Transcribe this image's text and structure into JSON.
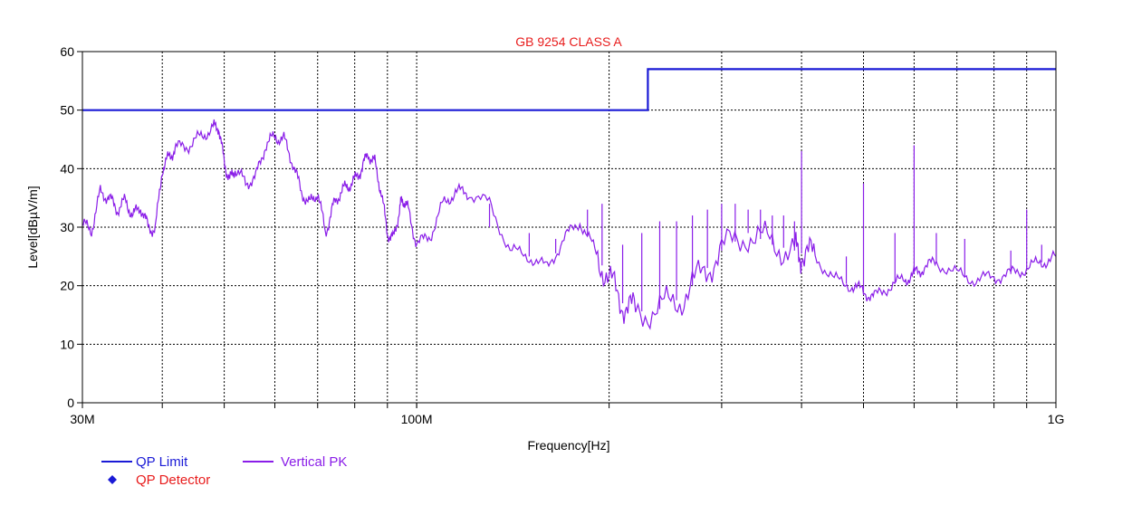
{
  "chart_data": {
    "type": "line",
    "title": "GB 9254 CLASS A",
    "xlabel": "Frequency[Hz]",
    "ylabel": "Level[dBµV/m]",
    "x_scale": "log",
    "xlim": [
      30000000,
      1000000000
    ],
    "ylim": [
      0,
      60
    ],
    "y_ticks": [
      0,
      10,
      20,
      30,
      40,
      50,
      60
    ],
    "x_tick_labels": [
      {
        "value": 30000000,
        "label": "30M"
      },
      {
        "value": 100000000,
        "label": "100M"
      },
      {
        "value": 1000000000,
        "label": "1G"
      }
    ],
    "x_grid": [
      40000000,
      50000000,
      60000000,
      70000000,
      80000000,
      90000000,
      100000000,
      200000000,
      300000000,
      400000000,
      500000000,
      600000000,
      700000000,
      800000000,
      900000000
    ],
    "grid": true,
    "grid_style": "dotted",
    "legend_position": "bottom-left",
    "colors": {
      "limit": "#1a1ad6",
      "peak": "#8a1de8",
      "detector": "#1a1ad6",
      "title": "#e81c1c",
      "detector_label": "#e81c1c"
    },
    "legend": [
      {
        "name": "QP Limit",
        "marker": "line",
        "color": "#1a1ad6",
        "label_color": "#1a1ad6"
      },
      {
        "name": "Vertical PK",
        "marker": "line",
        "color": "#8a1de8",
        "label_color": "#8a1de8"
      },
      {
        "name": "QP Detector",
        "marker": "diamond",
        "color": "#1a1ad6",
        "label_color": "#e81c1c"
      }
    ],
    "series": [
      {
        "name": "QP Limit",
        "color": "#1a1ad6",
        "step": true,
        "x": [
          30000000,
          230000000,
          230000000,
          1000000000
        ],
        "y": [
          50,
          50,
          57,
          57
        ]
      },
      {
        "name": "Vertical PK",
        "color": "#8a1de8",
        "x": [
          30000000,
          31000000,
          32000000,
          33000000,
          34000000,
          35000000,
          36000000,
          37000000,
          38000000,
          39000000,
          40000000,
          41000000,
          42000000,
          44000000,
          46000000,
          48000000,
          49000000,
          50000000,
          51000000,
          52000000,
          54000000,
          56000000,
          58000000,
          60000000,
          62000000,
          64000000,
          66000000,
          68000000,
          70000000,
          72000000,
          74000000,
          76000000,
          78000000,
          80000000,
          82000000,
          84000000,
          86000000,
          88000000,
          90000000,
          92000000,
          94000000,
          95000000,
          97000000,
          100000000,
          105000000,
          110000000,
          115000000,
          120000000,
          130000000,
          140000000,
          150000000,
          160000000,
          170000000,
          180000000,
          190000000,
          200000000,
          210000000,
          220000000,
          240000000,
          260000000,
          280000000,
          300000000,
          330000000,
          360000000,
          390000000,
          400000000,
          420000000,
          450000000,
          480000000,
          500000000,
          520000000,
          550000000,
          580000000,
          600000000,
          620000000,
          650000000,
          700000000,
          750000000,
          800000000,
          850000000,
          900000000,
          950000000,
          1000000000
        ],
        "y": [
          30.5,
          29.5,
          36,
          35,
          33,
          34.5,
          32,
          33.5,
          30,
          29.5,
          40,
          42,
          43.5,
          44,
          45.5,
          47,
          47.2,
          41,
          38,
          40,
          37.5,
          38.5,
          44,
          45.5,
          45,
          41,
          36,
          34,
          36,
          29,
          33.5,
          36,
          37,
          38,
          40,
          42.5,
          41,
          36,
          29,
          28,
          33,
          35,
          33,
          27,
          28.5,
          34,
          36,
          36,
          34,
          26,
          25,
          23,
          28,
          31,
          26,
          21,
          17,
          15.5,
          16,
          18,
          22,
          26,
          29,
          27,
          26,
          25.5,
          25,
          21,
          20,
          19,
          18,
          20,
          21,
          22,
          23,
          24,
          22,
          21,
          21.5,
          22,
          23,
          24,
          25
        ]
      },
      {
        "name": "Vertical PK peaks",
        "color": "#8a1de8",
        "x": [
          130000000,
          150000000,
          165000000,
          185000000,
          195000000,
          210000000,
          225000000,
          240000000,
          255000000,
          270000000,
          285000000,
          300000000,
          315000000,
          330000000,
          345000000,
          360000000,
          375000000,
          390000000,
          400000000,
          470000000,
          500000000,
          560000000,
          600000000,
          650000000,
          720000000,
          850000000,
          900000000,
          950000000
        ],
        "y": [
          30,
          29,
          28,
          33,
          34,
          27,
          29,
          31,
          31,
          32,
          33,
          34,
          34,
          33,
          33,
          32,
          32,
          31,
          43,
          25,
          37.5,
          29,
          44,
          29,
          28,
          26,
          33,
          27
        ]
      }
    ]
  }
}
